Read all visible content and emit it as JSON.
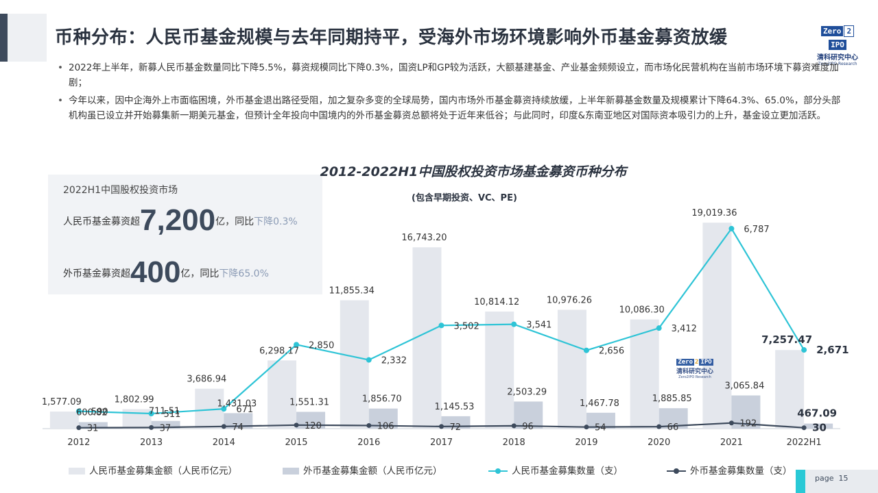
{
  "header": {
    "title": "币种分布：人民币基金规模与去年同期持平，受海外市场环境影响外币基金募资放缓",
    "logo": {
      "zero": "Zero",
      "two": "2",
      "ipo": "IPO",
      "cn": "清科研究中心",
      "en": "Zero2IPO Research"
    }
  },
  "bullets": [
    "2022年上半年，新募人民币基金数量同比下降5.5%，募资规模同比下降0.3%，国资LP和GP较为活跃，大额基建基金、产业基金频频设立，而市场化民营机构在当前市场环境下募资难度加剧；",
    "今年以来，因中企海外上市面临困境，外币基金退出路径受阻，加之复杂多变的全球局势，国内市场外币基金募资持续放缓，上半年新募基金数量及规模累计下降64.3%、65.0%，部分头部机构虽已设立并开始募集新一期美元基金，但预计全年投向中国境内的外币基金募资总额将处于近年来低谷；与此同时，印度&东南亚地区对国际资本吸引力的上升，基金设立更加活跃。"
  ],
  "panel": {
    "heading": "2022H1中国股权投资市场",
    "rmb_prefix": "人民币基金募资超",
    "rmb_big": "7,200",
    "rmb_mid": "亿，同比",
    "rmb_down": "下降0.3%",
    "fx_prefix": "外币基金募资超",
    "fx_big": "400",
    "fx_mid": "亿，同比",
    "fx_down": "下降65.0%"
  },
  "chart_data": {
    "type": "bar",
    "title": "2012-2022H1中国股权投资市场基金募资币种分布",
    "subtitle": "(包含早期投资、VC、PE)",
    "categories": [
      "2012",
      "2013",
      "2014",
      "2015",
      "2016",
      "2017",
      "2018",
      "2019",
      "2020",
      "2021",
      "2022H1"
    ],
    "series": [
      {
        "name": "人民币基金募集金额（人民币亿元）",
        "kind": "bar",
        "color": "#e4e7ed",
        "values": [
          1577.09,
          1802.99,
          3686.94,
          6298.17,
          11855.34,
          16743.2,
          10814.12,
          10976.26,
          10086.3,
          19019.36,
          7257.47
        ],
        "labels": [
          "1,577.09",
          "1,802.99",
          "3,686.94",
          "6,298.17",
          "11,855.34",
          "16,743.20",
          "10,814.12",
          "10,976.26",
          "10,086.30",
          "19,019.36",
          "7,257.47"
        ]
      },
      {
        "name": "外币基金募集金额（人民币亿元）",
        "kind": "bar",
        "color": "#c9d0dc",
        "values": [
          600.82,
          711.51,
          1431.03,
          1551.31,
          1856.7,
          1145.53,
          2503.29,
          1467.78,
          1885.85,
          3065.84,
          467.09
        ],
        "labels": [
          "600.82",
          "711.51",
          "1,431.03",
          "1,551.31",
          "1,856.70",
          "1,145.53",
          "2,503.29",
          "1,467.78",
          "1,885.85",
          "3,065.84",
          "467.09"
        ]
      },
      {
        "name": "人民币基金募集数量（支）",
        "kind": "line",
        "color": "#2ec4d6",
        "values": [
          590,
          511,
          671,
          2850,
          2332,
          3502,
          3541,
          2656,
          3412,
          6787,
          2671
        ],
        "labels": [
          "590",
          "511",
          "671",
          "2,850",
          "2,332",
          "3,502",
          "3,541",
          "2,656",
          "3,412",
          "6,787",
          "2,671"
        ]
      },
      {
        "name": "外币基金募集数量（支）",
        "kind": "line",
        "color": "#3d4a5c",
        "values": [
          31,
          37,
          74,
          120,
          106,
          72,
          96,
          54,
          66,
          192,
          30
        ],
        "labels": [
          "31",
          "37",
          "74",
          "120",
          "106",
          "72",
          "96",
          "54",
          "66",
          "192",
          "30"
        ]
      }
    ]
  },
  "page": {
    "label": "page",
    "number": "15"
  }
}
